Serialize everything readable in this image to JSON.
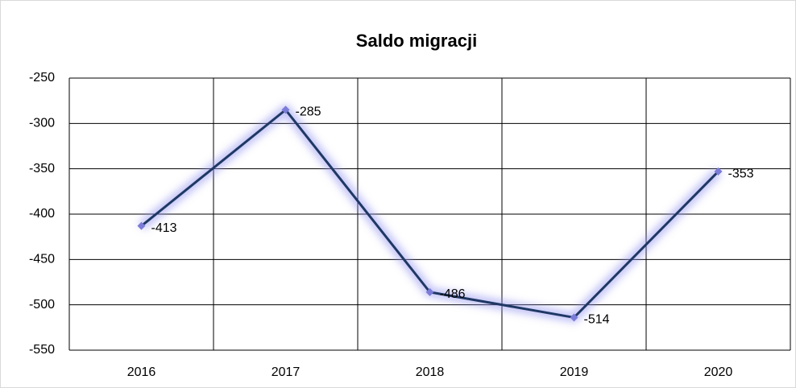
{
  "chart_data": {
    "type": "line",
    "title": "Saldo migracji",
    "categories": [
      "2016",
      "2017",
      "2018",
      "2019",
      "2020"
    ],
    "values": [
      -413,
      -285,
      -486,
      -514,
      -353
    ],
    "color": "#1f3864",
    "marker_color": "#7b7bd8",
    "ylim": [
      -550,
      -250
    ],
    "yticks": [
      -550,
      -500,
      -450,
      -400,
      -350,
      -300,
      -250
    ],
    "grid": true
  }
}
